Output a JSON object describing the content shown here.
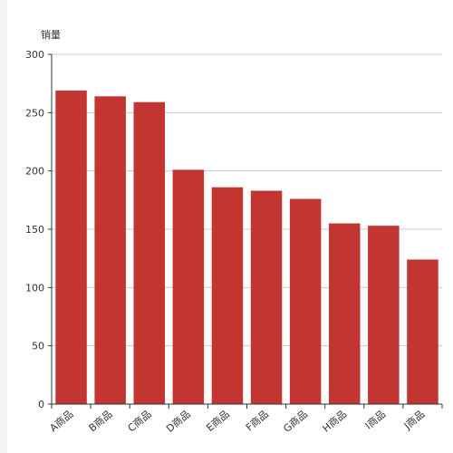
{
  "chart_data": {
    "type": "bar",
    "title": "",
    "ylabel": "销量",
    "xlabel": "",
    "ylim": [
      0,
      300
    ],
    "yticks": [
      0,
      50,
      100,
      150,
      200,
      250,
      300
    ],
    "grid": true,
    "categories": [
      "A商品",
      "B商品",
      "C商品",
      "D商品",
      "E商品",
      "F商品",
      "G商品",
      "H商品",
      "I商品",
      "J商品"
    ],
    "series": [
      {
        "values": [
          269,
          264,
          259,
          201,
          186,
          183,
          176,
          155,
          153,
          124
        ],
        "color": "#c23531"
      }
    ],
    "axis_color": "#333333",
    "grid_color": "#cccccc"
  }
}
